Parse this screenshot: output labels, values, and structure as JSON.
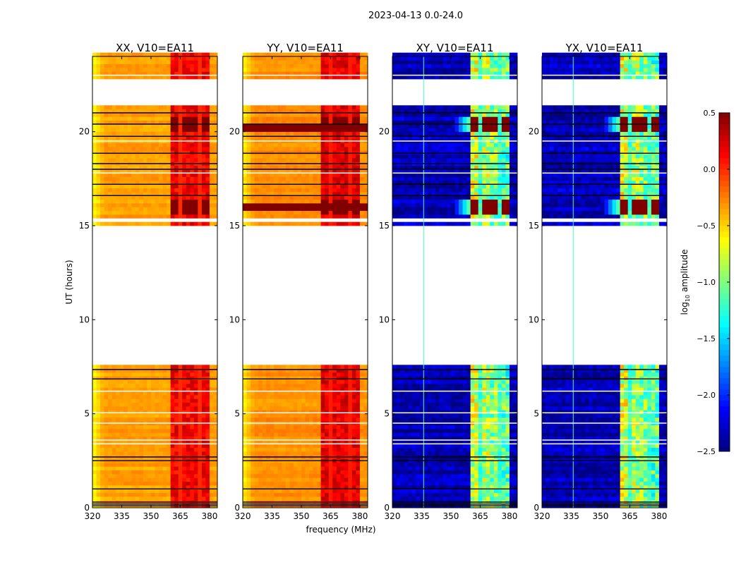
{
  "chart_data": {
    "type": "heatmap",
    "suptitle": "2023-04-13 0.0-24.0",
    "xlabel": "frequency (MHz)",
    "ylabel": "UT (hours)",
    "xlim": [
      320,
      384
    ],
    "ylim": [
      0,
      24
    ],
    "xticks": [
      "320",
      "335",
      "350",
      "365",
      "380"
    ],
    "xtick_values": [
      320,
      335,
      350,
      365,
      380
    ],
    "yticks": [
      "0",
      "5",
      "10",
      "15",
      "20"
    ],
    "ytick_values": [
      0,
      5,
      10,
      15,
      20
    ],
    "flagged_hours": [
      [
        7.6,
        15.0
      ],
      [
        21.35,
        22.8
      ],
      [
        15.2,
        15.45
      ]
    ],
    "white_lines_hours": [
      4.5,
      5.05,
      6.2,
      17.8,
      19.5,
      23.0,
      3.6,
      3.4
    ],
    "black_lines_hours": [
      0.1,
      0.2,
      0.3,
      1.0,
      2.5,
      2.7,
      6.85,
      7.35,
      16.6,
      17.2,
      18.0,
      18.3,
      18.85,
      19.75,
      20.4,
      21.0
    ],
    "rfi_subbands_mhz": [
      [
        360.5,
        365
      ],
      [
        366,
        370
      ],
      [
        371,
        375
      ],
      [
        376,
        380
      ]
    ],
    "hot_hours": [
      [
        15.6,
        16.4
      ],
      [
        19.9,
        20.8
      ]
    ],
    "panels": [
      {
        "title": "XX, V10=EA11",
        "base": -0.35,
        "edge_base": -0.65,
        "band": 0.15,
        "hot": 0.5,
        "fullwidth_hot": [],
        "vline_mhz": null,
        "show_ylabel": true,
        "show_xlabel": false
      },
      {
        "title": "YY, V10=EA11",
        "base": -0.3,
        "edge_base": -0.6,
        "band": 0.2,
        "hot": 0.5,
        "fullwidth_hot": [
          [
            19.95,
            20.45
          ],
          [
            15.8,
            16.1
          ]
        ],
        "vline_mhz": null,
        "show_ylabel": false,
        "show_xlabel": true
      },
      {
        "title": "XY, V10=EA11",
        "base": -2.35,
        "edge_base": -2.35,
        "band": -0.75,
        "hot": 0.5,
        "fullwidth_hot": [],
        "vline_mhz": 336,
        "show_ylabel": false,
        "show_xlabel": false
      },
      {
        "title": "YX, V10=EA11",
        "base": -2.35,
        "edge_base": -2.35,
        "band": -0.75,
        "hot": 0.5,
        "fullwidth_hot": [],
        "vline_mhz": 336,
        "show_ylabel": false,
        "show_xlabel": false
      }
    ],
    "colorbar": {
      "label_main": "log",
      "label_sub": "10",
      "label_rest": " amplitude",
      "range": [
        -2.5,
        0.5
      ],
      "ticks": [
        "0.5",
        "0.0",
        "−0.5",
        "−1.0",
        "−1.5",
        "−2.0",
        "−2.5"
      ],
      "tick_values": [
        0.5,
        0.0,
        -0.5,
        -1.0,
        -1.5,
        -2.0,
        -2.5
      ],
      "colormap": "jet"
    }
  }
}
